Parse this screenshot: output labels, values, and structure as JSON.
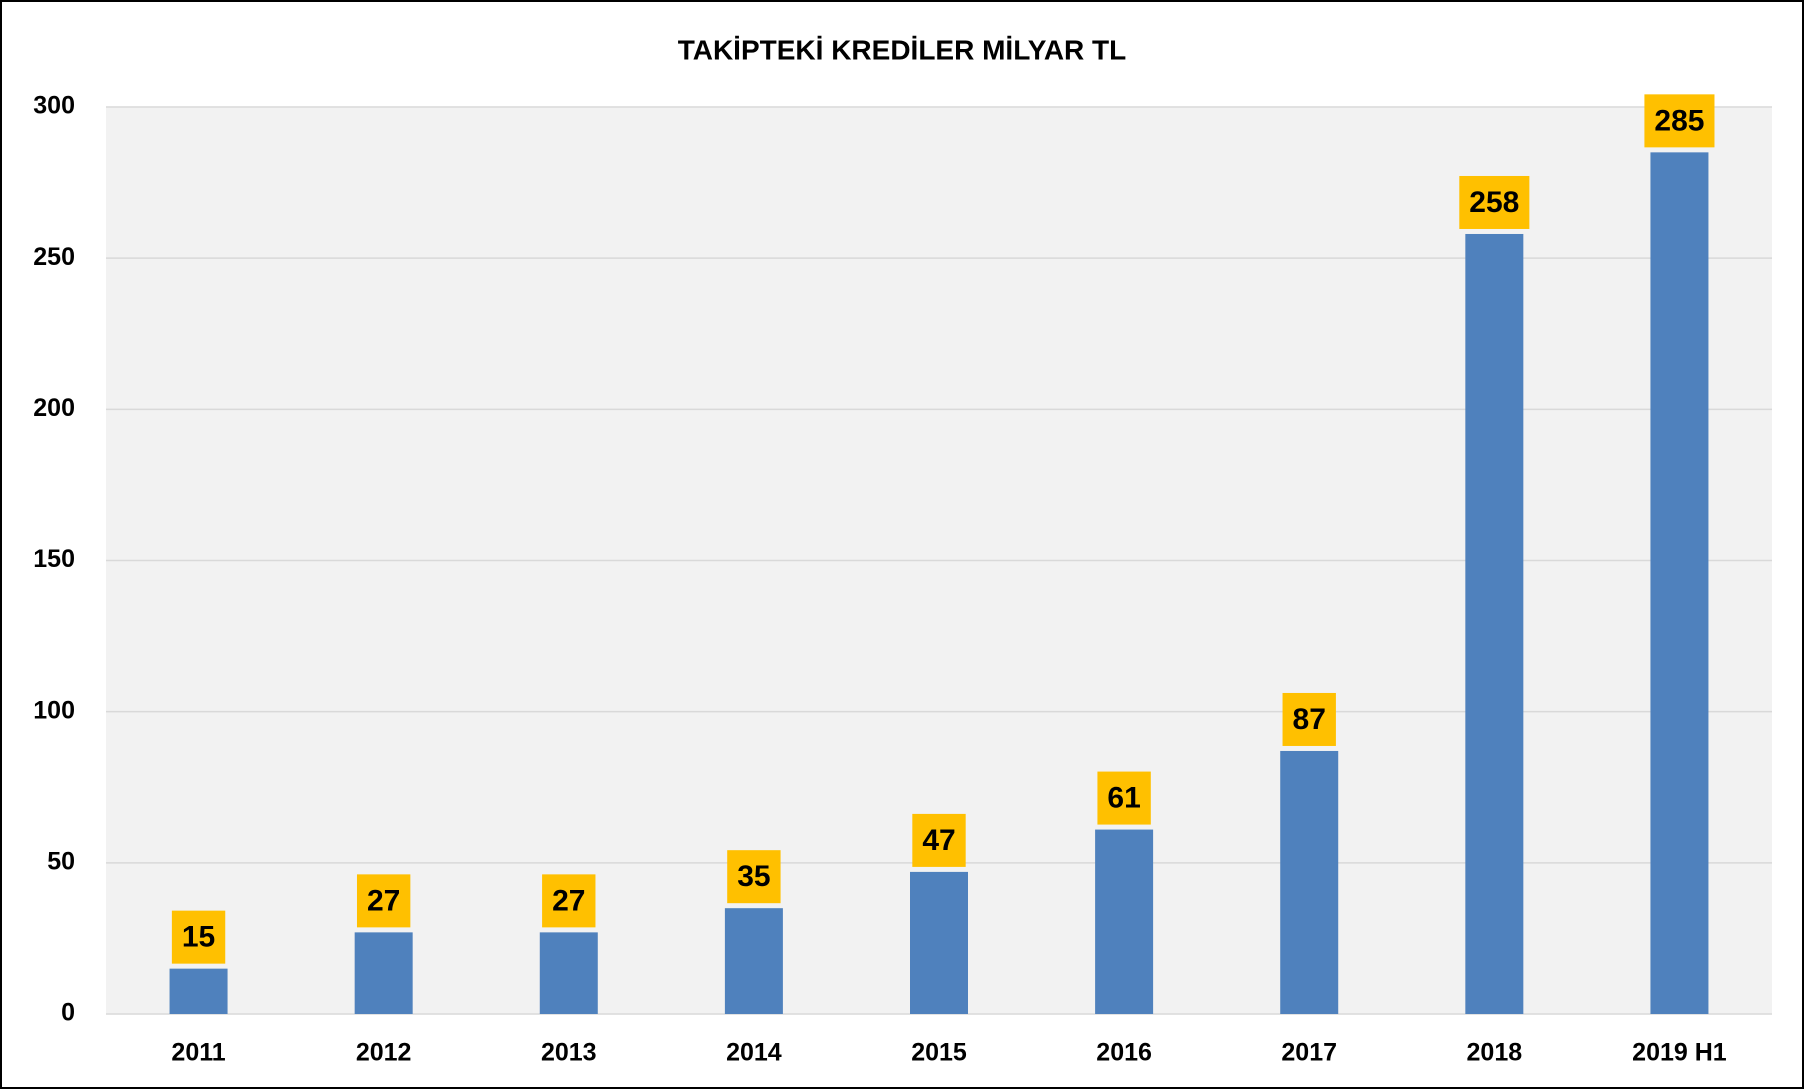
{
  "chart_data": {
    "type": "bar",
    "title": "TAKİPTEKİ KREDİLER MİLYAR TL",
    "categories": [
      "2011",
      "2012",
      "2013",
      "2014",
      "2015",
      "2016",
      "2017",
      "2018",
      "2019 H1"
    ],
    "values": [
      15,
      27,
      27,
      35,
      47,
      61,
      87,
      258,
      285
    ],
    "color": "#4f81bd",
    "label_color": "#ffc000",
    "ylim": [
      0,
      300
    ],
    "yticks": [
      0,
      50,
      100,
      150,
      200,
      250,
      300
    ],
    "grid": true
  }
}
